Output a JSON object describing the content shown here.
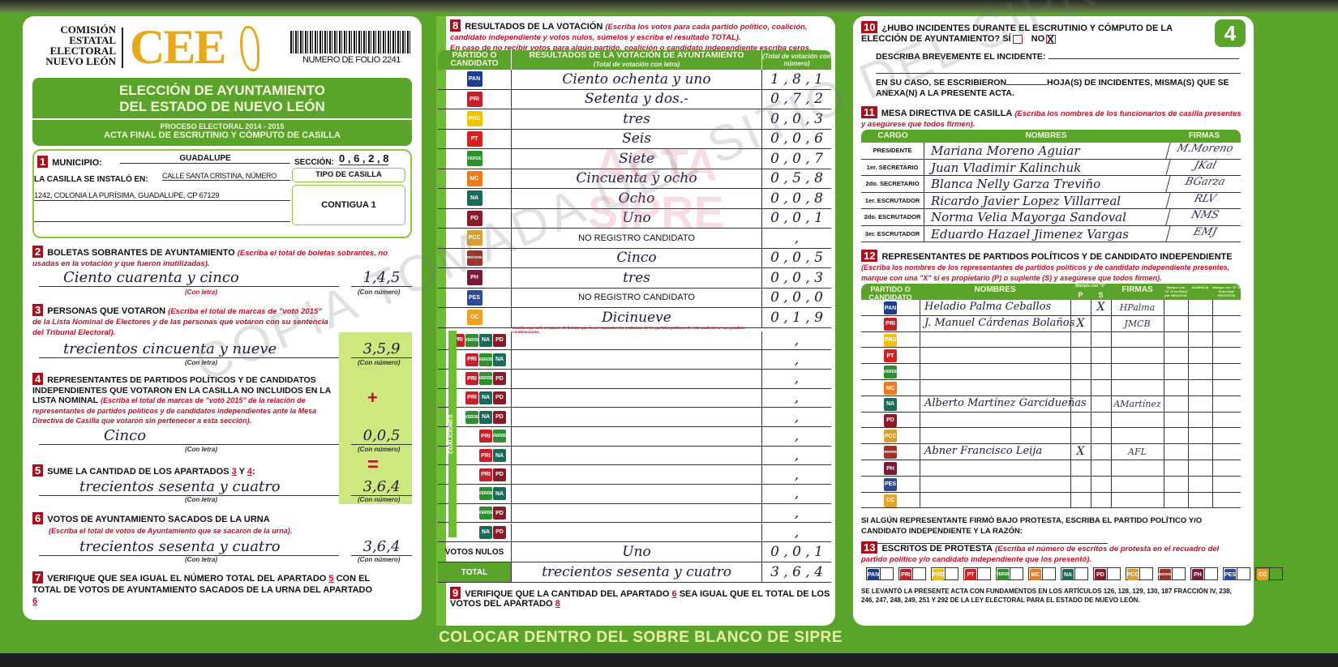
{
  "page_number": "4",
  "left": {
    "org_lines": [
      "COMISIÓN",
      "ESTATAL",
      "ELECTORAL",
      "NUEVO LEÓN"
    ],
    "logo": "CEE",
    "folio": "NUMERO DE FOLIO 2241",
    "title1": "ELECCIÓN DE AYUNTAMIENTO",
    "title2": "DEL ESTADO DE NUEVO LEÓN",
    "sub1": "PROCESO ELECTORAL 2014 - 2015",
    "sub2": "ACTA FINAL DE ESCRUTINIO Y CÓMPUTO DE CASILLA",
    "s1": {
      "num": "1",
      "municipio_label": "MUNICIPIO:",
      "municipio": "GUADALUPE",
      "seccion_label": "SECCIÓN:",
      "seccion": "0 , 6 , 2 , 8",
      "instalo_label": "LA CASILLA SE INSTALÓ EN:",
      "address1": "CALLE SANTA CRISTINA, NÚMERO",
      "address2": "1242, COLONIA LA PURÍSIMA, GUADALUPE, CP 67129",
      "tipo_label": "TIPO DE CASILLA",
      "tipo": "CONTIGUA 1"
    },
    "s2": {
      "num": "2",
      "title": "BOLETAS SOBRANTES DE AYUNTAMIENTO",
      "instr": "(Escriba el total de boletas sobrantes, no usadas en la votación y que fueron inutilizadas).",
      "letra": "Ciento cuarenta y cinco",
      "numero": "1,4,5"
    },
    "s3": {
      "num": "3",
      "title": "PERSONAS QUE VOTARON",
      "instr": "(Escriba el total de marcas de \"votó 2015\" de la Lista Nominal de Electores y de las personas que votaron con su sentencia del Tribunal Electoral).",
      "letra": "trecientos cincuenta y nueve",
      "numero": "3,5,9"
    },
    "s4": {
      "num": "4",
      "title": "REPRESENTANTES DE PARTIDOS POLÍTICOS Y DE CANDIDATOS INDEPENDIENTES QUE VOTARON EN LA CASILLA NO INCLUIDOS EN LA LISTA NOMINAL",
      "instr": "(Escriba el total de marcas de \"votó 2015\" de la relación de representantes de partidos políticos y de candidatos independientes ante la Mesa Directiva de Casilla que votaron sin pertenecer a esta sección).",
      "letra": "Cinco",
      "numero": "0,0,5",
      "sign": "+"
    },
    "s5": {
      "num": "5",
      "title": "SUME LA CANTIDAD DE LOS APARTADOS",
      "a": "3",
      "y": "Y",
      "b": "4",
      "letra": "trecientos sesenta y cuatro",
      "numero": "3,6,4",
      "sign": "="
    },
    "s6": {
      "num": "6",
      "title": "VOTOS DE AYUNTAMIENTO SACADOS DE LA URNA",
      "instr": "(Escriba el total de votos de Ayuntamiento que se sacaron de la urna).",
      "letra": "trecientos sesenta y cuatro",
      "numero": "3,6,4"
    },
    "s7": {
      "num": "7",
      "text1": "VERIFIQUE QUE SEA IGUAL EL NÚMERO TOTAL DEL APARTADO",
      "a": "5",
      "text2": "CON EL TOTAL DE VOTOS DE AYUNTAMIENTO SACADOS DE LA URNA DEL APARTADO",
      "b": "6"
    },
    "con_letra": "(Con letra)",
    "con_numero": "(Con número)"
  },
  "middle": {
    "num": "8",
    "title": "RESULTADOS DE LA VOTACIÓN",
    "instr1": "(Escriba los votos para cada partido político, coalición, candidato independiente y votos nulos, súmelos y escriba el resultado TOTAL).",
    "instr2": "En caso de no recibir votos para algún partido, coalición o candidato independiente escriba ceros.",
    "h_party": "PARTIDO O CANDIDATO",
    "h_letter": "RESULTADOS DE LA VOTACIÓN DE AYUNTAMIENTO",
    "h_letter_sub": "(Total de votación con letra)",
    "h_number": "(Total de votación con número)",
    "rows": [
      {
        "icon": "PAN",
        "color": "#1a3d8f",
        "letra": "Ciento ochenta y uno",
        "numero": "1 , 8 , 1"
      },
      {
        "icon": "PRI",
        "color": "#c81e2a",
        "letra": "Setenta y dos.-",
        "numero": "0 , 7 , 2"
      },
      {
        "icon": "PRD",
        "color": "#f2c200",
        "letra": "tres",
        "numero": "0 , 0 , 3"
      },
      {
        "icon": "PT",
        "color": "#d9201e",
        "letra": "Seis",
        "numero": "0 , 0 , 6"
      },
      {
        "icon": "VERDE",
        "color": "#2f8f2f",
        "letra": "Siete",
        "numero": "0 , 0 , 7"
      },
      {
        "icon": "MC",
        "color": "#f07a1a",
        "letra": "Cincuenta y ocho",
        "numero": "0 , 5 , 8"
      },
      {
        "icon": "NA",
        "color": "#1a6a5a",
        "letra": "Ocho",
        "numero": "0 , 0 , 8"
      },
      {
        "icon": "PD",
        "color": "#8a1a2a",
        "letra": "Uno",
        "numero": "0 , 0 , 1"
      },
      {
        "icon": "PCC",
        "color": "#d8a030",
        "letra": "NO REGISTRO CANDIDATO",
        "numero": " , "
      },
      {
        "icon": "morena",
        "color": "#a0302a",
        "letra": "Cinco",
        "numero": "0 , 0 , 5"
      },
      {
        "icon": "PH",
        "color": "#7a1a3a",
        "letra": "tres",
        "numero": "0 , 0 , 3"
      },
      {
        "icon": "PES",
        "color": "#2a4a9a",
        "letra": "NO REGISTRO CANDIDATO",
        "numero": "0 , 0 , 0"
      },
      {
        "icon": "CC",
        "color": "#f0a020",
        "letra": "Dicinueve",
        "numero": "0 , 1 , 9"
      }
    ],
    "coalition_note": "Escriba aquí solo el número de boletas que tienen marcados los emblemas de los partidos políticos de esta coalición en sus posibles combinaciones.",
    "coalition_label": "COALICIONES",
    "coalitions": [
      [
        "PRI",
        "VERDE",
        "NA",
        "PD"
      ],
      [
        "PRI",
        "VERDE",
        "NA"
      ],
      [
        "PRI",
        "VERDE",
        "PD"
      ],
      [
        "PRI",
        "NA",
        "PD"
      ],
      [
        "VERDE",
        "NA",
        "PD"
      ],
      [
        "PRI",
        "VERDE"
      ],
      [
        "PRI",
        "NA"
      ],
      [
        "PRI",
        "PD"
      ],
      [
        "VERDE",
        "NA"
      ],
      [
        "VERDE",
        "PD"
      ],
      [
        "NA",
        "PD"
      ]
    ],
    "nulos_label": "VOTOS NULOS",
    "nulos_letra": "Uno",
    "nulos_numero": "0 , 0 , 1",
    "total_label": "TOTAL",
    "total_letra": "trecientos sesenta y cuatro",
    "total_numero": "3 , 6 , 4",
    "s9": {
      "num": "9",
      "text1": "VERIFIQUE QUE LA CANTIDAD DEL APARTADO",
      "a": "6",
      "text2": "SEA IGUAL QUE EL TOTAL DE LOS VOTOS DEL APARTADO",
      "b": "8"
    },
    "watermark1": "ACTA",
    "watermark2": "SIPRE"
  },
  "right": {
    "s10": {
      "num": "10",
      "q": "¿HUBO INCIDENTES DURANTE EL ESCRUTINIO Y CÓMPUTO DE LA ELECCIÓN DE AYUNTAMIENTO?",
      "si": "SÍ",
      "no": "NO",
      "no_mark": "X",
      "describe": "DESCRIBA BREVEMENTE EL INCIDENTE:",
      "en_su_caso1": "EN SU CASO, SE ESCRIBIERON",
      "en_su_caso2": "HOJA(S) DE INCIDENTES, MISMA(S) QUE SE ANEXA(N) A LA PRESENTE ACTA."
    },
    "s11": {
      "num": "11",
      "title": "MESA DIRECTIVA DE CASILLA",
      "instr": "(Escriba los nombres de los funcionarios de casilla presentes y asegúrese que todos firmen).",
      "h_cargo": "CARGO",
      "h_nombres": "NOMBRES",
      "h_firmas": "FIRMAS",
      "rows": [
        {
          "cargo": "PRESIDENTE",
          "nombre": "Mariana Moreno Aguiar",
          "firma": "M.Moreno"
        },
        {
          "cargo": "1er. SECRETARIO",
          "nombre": "Juan Vladimir Kalinchuk",
          "firma": "JKal"
        },
        {
          "cargo": "2do. SECRETARIO",
          "nombre": "Blanca Nelly Garza Treviño",
          "firma": "BGarza"
        },
        {
          "cargo": "1er. ESCRUTADOR",
          "nombre": "Ricardo Javier Lopez Villarreal",
          "firma": "RLV"
        },
        {
          "cargo": "2do. ESCRUTADOR",
          "nombre": "Norma Velia Mayorga Sandoval",
          "firma": "NMS"
        },
        {
          "cargo": "3er. ESCRUTADOR",
          "nombre": "Eduardo Hazael Jimenez Vargas",
          "firma": "EMJ"
        }
      ]
    },
    "s12": {
      "num": "12",
      "title": "REPRESENTANTES DE PARTIDOS POLÍTICOS Y DE CANDIDATO INDEPENDIENTE",
      "instr": "(Escriba los nombres de los representantes de partidos políticos y de candidato independiente presentes, marque con una \"X\" si es propietario (P) o suplente (S) y asegúrese que todos firmen).",
      "h_party": "PARTIDO O CANDIDATO",
      "h_nombres": "NOMBRES",
      "h_marque": "Marque con \"X\"",
      "h_p": "P",
      "h_s": "S",
      "h_firmas": "FIRMAS",
      "h_neg": "Marque con \"X\" si no firmó por NEGATIVA",
      "h_aus": "AUSENCIA",
      "h_prot": "Marque con \"X\" si firmó bajo PROTESTA",
      "rows": [
        {
          "icon": "PAN",
          "nombre": "Heladio Palma Ceballos",
          "p": "",
          "s": "X",
          "firma": "HPalma"
        },
        {
          "icon": "PRI",
          "nombre": "J. Manuel Cárdenas Bolaños",
          "p": "X",
          "s": "",
          "firma": "JMCB"
        },
        {
          "icon": "PRD",
          "nombre": "",
          "p": "",
          "s": "",
          "firma": ""
        },
        {
          "icon": "PT",
          "nombre": "",
          "p": "",
          "s": "",
          "firma": ""
        },
        {
          "icon": "VERDE",
          "nombre": "",
          "p": "",
          "s": "",
          "firma": ""
        },
        {
          "icon": "MC",
          "nombre": "",
          "p": "",
          "s": "",
          "firma": ""
        },
        {
          "icon": "NA",
          "nombre": "Alberto Martínez Garcidueñas",
          "p": "",
          "s": "",
          "firma": "AMartínez"
        },
        {
          "icon": "PD",
          "nombre": "",
          "p": "",
          "s": "",
          "firma": ""
        },
        {
          "icon": "PCC",
          "nombre": "",
          "p": "",
          "s": "",
          "firma": ""
        },
        {
          "icon": "morena",
          "nombre": "Abner Francisco Leija",
          "p": "X",
          "s": "",
          "firma": "AFL"
        },
        {
          "icon": "PH",
          "nombre": "",
          "p": "",
          "s": "",
          "firma": ""
        },
        {
          "icon": "PES",
          "nombre": "",
          "p": "",
          "s": "",
          "firma": ""
        },
        {
          "icon": "CC",
          "nombre": "",
          "p": "",
          "s": "",
          "firma": ""
        }
      ],
      "protesta": "SI ALGÚN REPRESENTANTE FIRMÓ BAJO PROTESTA, ESCRIBA EL PARTIDO POLÍTICO Y/O CANDIDATO INDEPENDIENTE Y LA RAZÓN:"
    },
    "s13": {
      "num": "13",
      "title": "ESCRITOS DE PROTESTA",
      "instr": "(Escriba el número de escritos de protesta en el recuadro del partido político y/o candidato independiente que los presentó).",
      "parties": [
        "PAN",
        "PRI",
        "PRD",
        "PT",
        "VERDE",
        "MC",
        "NA",
        "PD",
        "PCC",
        "morena",
        "PH",
        "PES",
        "CC"
      ]
    },
    "footer": "SE LEVANTÓ LA PRESENTE ACTA CON FUNDAMENTOS EN LOS ARTÍCULOS 126, 128, 129, 130, 187 FRACCIÓN IV, 238, 246, 247, 248, 249, 251 Y 292 DE LA LEY ELECTORAL PARA EL ESTADO DE NUEVO LEÓN."
  },
  "bottom_banner": "COLOCAR DENTRO DEL SOBRE BLANCO DE SIPRE",
  "diagonal_watermark": "COPIA TOMADA DEL SITIO DEL SIPRE",
  "colors": {
    "green": "#5ba42c",
    "red": "#a8101e",
    "logo": "#e8a81a"
  }
}
